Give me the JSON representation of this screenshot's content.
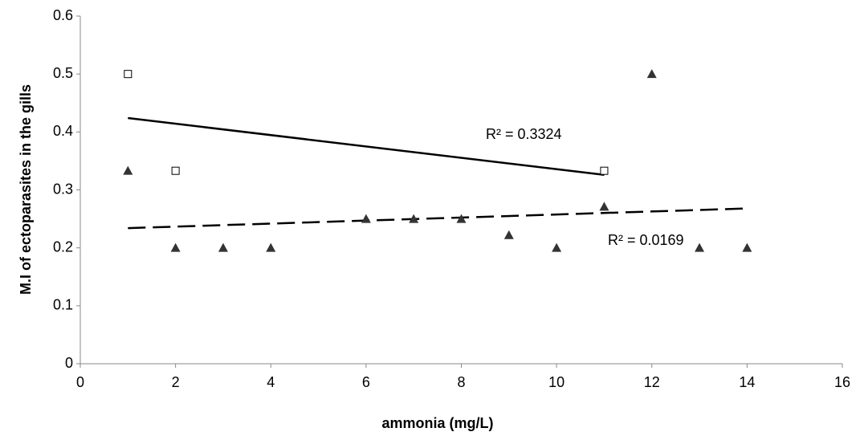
{
  "chart_data": {
    "type": "scatter",
    "xlabel": "ammonia (mg/L)",
    "ylabel": "M.I  of ectoparasites in the gills",
    "xlim": [
      0,
      16
    ],
    "xticks": [
      0,
      2,
      4,
      6,
      8,
      10,
      12,
      14,
      16
    ],
    "ylim": [
      0,
      0.6
    ],
    "yticks": [
      0,
      0.1,
      0.2,
      0.3,
      0.4,
      0.5,
      0.6
    ],
    "grid": false,
    "series": [
      {
        "marker": "square",
        "color": "#000000",
        "x": [
          1,
          2,
          11
        ],
        "values": [
          0.5,
          0.333,
          0.333
        ]
      },
      {
        "marker": "triangle",
        "color": "#333333",
        "x": [
          1,
          2,
          3,
          4,
          6,
          7,
          8,
          9,
          10,
          11,
          12,
          13,
          14
        ],
        "values": [
          0.333,
          0.2,
          0.2,
          0.2,
          0.25,
          0.25,
          0.25,
          0.222,
          0.2,
          0.271,
          0.5,
          0.2,
          0.2
        ]
      }
    ],
    "trendlines": [
      {
        "dashed": false,
        "color": "#000000",
        "x": [
          1,
          11
        ],
        "values": [
          0.424,
          0.326
        ]
      },
      {
        "dashed": true,
        "color": "#000000",
        "x": [
          1,
          14
        ],
        "values": [
          0.234,
          0.268
        ]
      }
    ],
    "annotations": [
      "R² = 0.3324",
      "R² = 0.0169"
    ]
  }
}
